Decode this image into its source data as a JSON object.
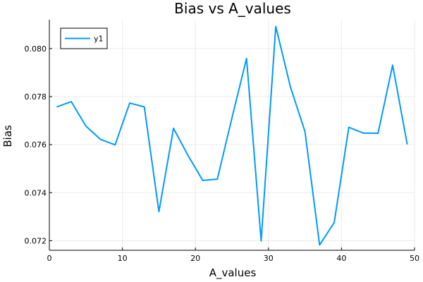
{
  "chart_data": {
    "type": "line",
    "title": "Bias vs A_values",
    "xlabel": "A_values",
    "ylabel": "Bias",
    "xlim": [
      0,
      50
    ],
    "ylim": [
      0.0716,
      0.0812
    ],
    "xticks": [
      0,
      10,
      20,
      30,
      40,
      50
    ],
    "xtick_labels": [
      "0",
      "10",
      "20",
      "30",
      "40",
      "50"
    ],
    "yticks": [
      0.072,
      0.074,
      0.076,
      0.078,
      0.08
    ],
    "ytick_labels": [
      "0.072",
      "0.074",
      "0.076",
      "0.078",
      "0.080"
    ],
    "grid": true,
    "legend_position": "top-left",
    "series": [
      {
        "name": "y1",
        "color": "#009AFA",
        "x": [
          1,
          3,
          5,
          7,
          9,
          11,
          13,
          15,
          17,
          19,
          21,
          23,
          25,
          27,
          29,
          31,
          33,
          35,
          37,
          39,
          41,
          43,
          45,
          47,
          49
        ],
        "y": [
          0.07757,
          0.07779,
          0.07677,
          0.07622,
          0.07599,
          0.07773,
          0.07757,
          0.07321,
          0.07668,
          0.07554,
          0.07451,
          0.07456,
          0.07711,
          0.07959,
          0.07199,
          0.08092,
          0.07841,
          0.07654,
          0.07182,
          0.07275,
          0.07672,
          0.07648,
          0.07647,
          0.07931,
          0.07601
        ]
      }
    ]
  }
}
